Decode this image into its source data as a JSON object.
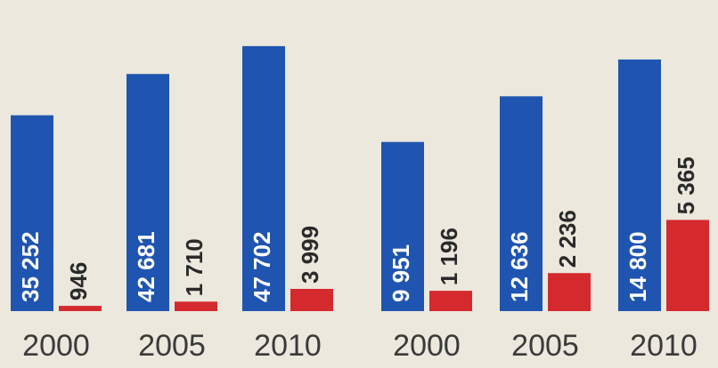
{
  "chart_data": [
    {
      "type": "bar",
      "categories": [
        "2000",
        "2005",
        "2010"
      ],
      "series": [
        {
          "color": "#1f55b0",
          "values": [
            35252,
            42681,
            47702
          ],
          "value_labels": [
            "35 252",
            "42 681",
            "47 702"
          ]
        },
        {
          "color": "#d42a2e",
          "values": [
            946,
            1710,
            3999
          ],
          "value_labels": [
            "946",
            "1 710",
            "3 999"
          ]
        }
      ],
      "ylim": [
        0,
        56000
      ]
    },
    {
      "type": "bar",
      "categories": [
        "2000",
        "2005",
        "2010"
      ],
      "series": [
        {
          "color": "#1f55b0",
          "values": [
            9951,
            12636,
            14800
          ],
          "value_labels": [
            "9 951",
            "12 636",
            "14 800"
          ]
        },
        {
          "color": "#d42a2e",
          "values": [
            1196,
            2236,
            5365
          ],
          "value_labels": [
            "1 196",
            "2 236",
            "5 365"
          ]
        }
      ],
      "ylim": [
        0,
        18300
      ]
    }
  ]
}
